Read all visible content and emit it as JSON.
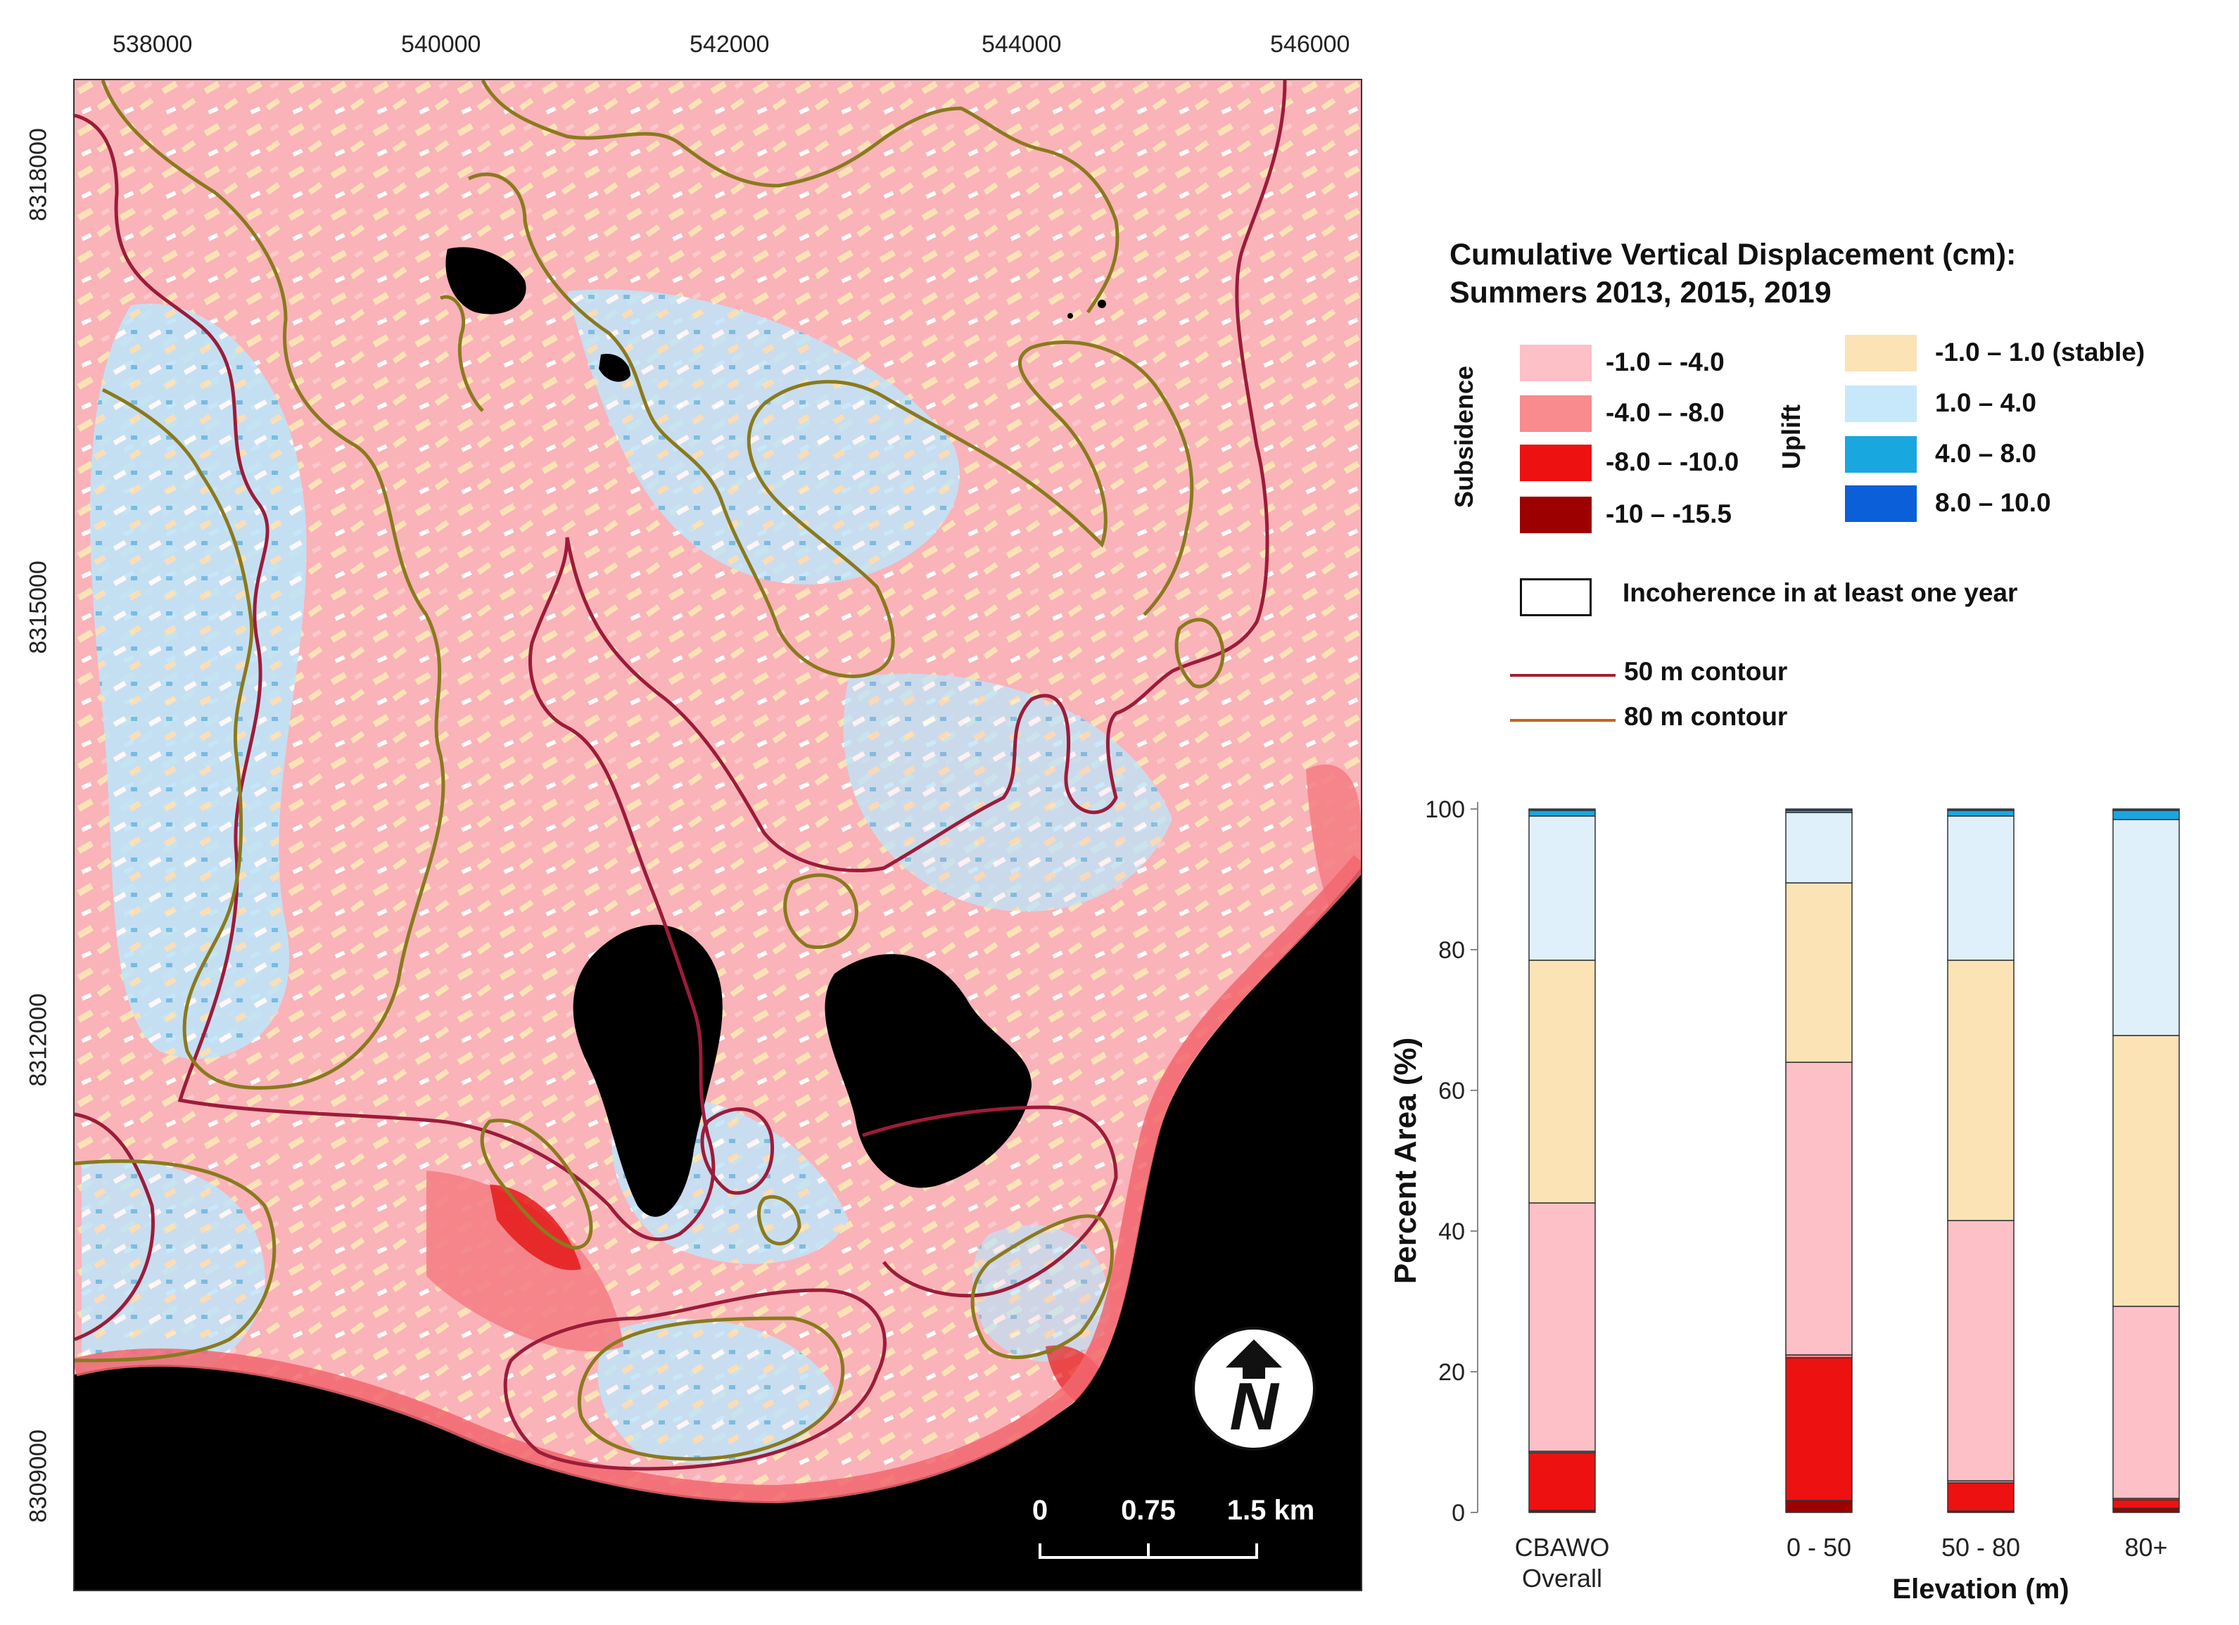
{
  "map": {
    "x_ticks": [
      "538000",
      "540000",
      "542000",
      "544000",
      "546000"
    ],
    "y_ticks": [
      "8318000",
      "8315000",
      "8312000",
      "8309000"
    ],
    "scale_labels": [
      "0",
      "0.75",
      "1.5 km"
    ],
    "north_label": "N",
    "colors": {
      "subsidence_light": "#fcc0c6",
      "subsidence_mid": "#f98a8e",
      "subsidence_strong": "#ee1111",
      "subsidence_extreme": "#9c0000",
      "stable": "#fbe3b6",
      "uplift_light": "#c7e8fb",
      "uplift_mid": "#19a7df",
      "uplift_strong": "#0b5fd8",
      "water": "#000000",
      "contour_50": "#9c1c3a",
      "contour_80": "#8a7a1e"
    }
  },
  "legend": {
    "title_line1": "Cumulative Vertical Displacement (cm):",
    "title_line2": "Summers 2013, 2015, 2019",
    "subsidence_label": "Subsidence",
    "uplift_label": "Uplift",
    "subsidence_items": [
      {
        "label": "-1.0 – -4.0",
        "color": "#fcc0c6"
      },
      {
        "label": "-4.0 – -8.0",
        "color": "#f98a8e"
      },
      {
        "label": "-8.0 – -10.0",
        "color": "#ee1111"
      },
      {
        "label": "-10 – -15.5",
        "color": "#9c0000"
      }
    ],
    "uplift_items": [
      {
        "label": "-1.0 – 1.0 (stable)",
        "color": "#fbe3b6"
      },
      {
        "label": "1.0 – 4.0",
        "color": "#c7e8fb"
      },
      {
        "label": "4.0 – 8.0",
        "color": "#19a7df"
      },
      {
        "label": "8.0 – 10.0",
        "color": "#0b5fd8"
      }
    ],
    "incoherence_label": "Incoherence in at least one year",
    "contour_50_label": "50 m contour",
    "contour_80_label": "80 m contour",
    "contour_50_color": "#a3202f",
    "contour_80_color": "#c8651b"
  },
  "chart_data": {
    "type": "bar",
    "stacked": true,
    "categories": [
      "CBAWO Overall",
      "0 - 50",
      "50 - 80",
      "80+"
    ],
    "xlabel": "Elevation (m)",
    "ylabel": "Percent Area (%)",
    "ylim": [
      0,
      100
    ],
    "yticks": [
      0,
      20,
      40,
      60,
      80,
      100
    ],
    "series": [
      {
        "name": "-10 – -15.5",
        "color": "#9c0000",
        "values": [
          0.3,
          1.7,
          0.2,
          0.6
        ]
      },
      {
        "name": "-8.0 – -10.0",
        "color": "#ee1111",
        "values": [
          8.2,
          20.3,
          4.0,
          1.2
        ]
      },
      {
        "name": "-4.0 – -8.0",
        "color": "#f98a8e",
        "values": [
          0.2,
          0.4,
          0.3,
          0.2
        ]
      },
      {
        "name": "-1.0 – -4.0",
        "color": "#fcc0c6",
        "values": [
          35.3,
          41.6,
          37.0,
          27.3
        ]
      },
      {
        "name": "-1.0 – 1.0 (stable)",
        "color": "#fbe3b6",
        "values": [
          34.5,
          25.5,
          37.0,
          38.5
        ]
      },
      {
        "name": "1.0 – 4.0",
        "color": "#dff0fb",
        "values": [
          20.5,
          10.0,
          20.5,
          30.7
        ]
      },
      {
        "name": "4.0 – 8.0",
        "color": "#19a7df",
        "values": [
          0.8,
          0.3,
          0.8,
          1.3
        ]
      },
      {
        "name": "8.0 – 10.0",
        "color": "#0b5fd8",
        "values": [
          0.2,
          0.2,
          0.2,
          0.2
        ]
      }
    ]
  }
}
